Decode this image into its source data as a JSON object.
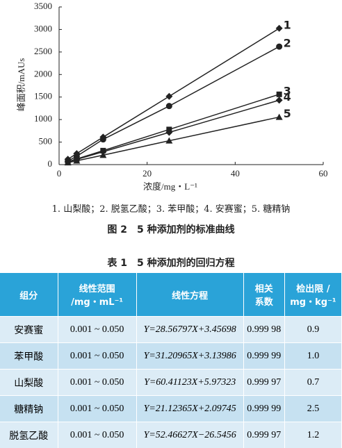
{
  "chart_data": {
    "type": "line",
    "x_label": "浓度/mg・L⁻¹",
    "y_label": "峰面积/mAUs",
    "xlim": [
      0,
      60
    ],
    "xticks": [
      0,
      20,
      40,
      60
    ],
    "ylim": [
      0,
      3500
    ],
    "yticks": [
      0,
      500,
      1000,
      1500,
      2000,
      2500,
      3000,
      3500
    ],
    "x": [
      2,
      4,
      10,
      25,
      50
    ],
    "series": [
      {
        "name": "1",
        "color": "#222222",
        "marker": "diamond",
        "values": [
          120,
          245,
          610,
          1515,
          3025
        ]
      },
      {
        "name": "2",
        "color": "#222222",
        "marker": "circle",
        "values": [
          80,
          185,
          560,
          1300,
          2620
        ]
      },
      {
        "name": "3",
        "color": "#222222",
        "marker": "square",
        "values": [
          65,
          125,
          310,
          780,
          1560
        ]
      },
      {
        "name": "4",
        "color": "#222222",
        "marker": "diamond",
        "values": [
          60,
          115,
          285,
          715,
          1430
        ]
      },
      {
        "name": "5",
        "color": "#222222",
        "marker": "triangle",
        "values": [
          45,
          85,
          210,
          530,
          1055
        ]
      }
    ]
  },
  "figure_legend": "1. 山梨酸；2. 脱氢乙酸；3. 苯甲酸；4. 安赛蜜；5. 糖精钠",
  "figure_caption": "图 2　5 种添加剂的标准曲线",
  "table": {
    "title": "表 1　5 种添加剂的回归方程",
    "header": [
      "组分",
      "线性范围\n/mg・mL⁻¹",
      "线性方程",
      "相关\n系数",
      "检出限 /\nmg・kg⁻¹"
    ],
    "rows": [
      [
        "安赛蜜",
        "0.001 ~ 0.050",
        "Y=28.56797X+3.45698",
        "0.999 98",
        "0.9"
      ],
      [
        "苯甲酸",
        "0.001 ~ 0.050",
        "Y=31.20965X+3.13986",
        "0.999 99",
        "1.0"
      ],
      [
        "山梨酸",
        "0.001 ~ 0.050",
        "Y=60.41123X+5.97323",
        "0.999 97",
        "0.7"
      ],
      [
        "糖精钠",
        "0.001 ~ 0.050",
        "Y=21.12365X+2.09745",
        "0.999 99",
        "2.5"
      ],
      [
        "脱氢乙酸",
        "0.001 ~ 0.050",
        "Y=52.46627X−26.5456",
        "0.999 97",
        "1.2"
      ]
    ]
  }
}
